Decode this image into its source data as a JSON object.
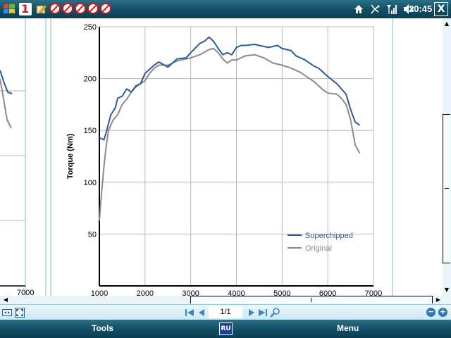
{
  "statusbar": {
    "time": "20:45",
    "close_label": "X"
  },
  "toolbar": {
    "page_indicator": "1/1"
  },
  "softkeys": {
    "left": "Tools",
    "center": "RU",
    "right": "Menu"
  },
  "chart_data": {
    "type": "line",
    "xlabel": "",
    "ylabel": "Torque (Nm)",
    "xlim": [
      1000,
      7000
    ],
    "ylim": [
      0,
      250
    ],
    "x_ticks": [
      1000,
      2000,
      3000,
      4000,
      5000,
      6000,
      7000
    ],
    "y_ticks": [
      50,
      100,
      150,
      200,
      250
    ],
    "grid": true,
    "legend_position": "bottom-right",
    "series": [
      {
        "name": "Superchipped",
        "color": "#2a5b9a",
        "x": [
          1000,
          1100,
          1150,
          1250,
          1350,
          1400,
          1500,
          1600,
          1700,
          1800,
          1900,
          2000,
          2200,
          2300,
          2500,
          2700,
          2900,
          3000,
          3200,
          3300,
          3400,
          3500,
          3600,
          3700,
          3800,
          3900,
          4000,
          4100,
          4200,
          4400,
          4600,
          4700,
          4900,
          5000,
          5200,
          5300,
          5500,
          5700,
          5800,
          6000,
          6200,
          6300,
          6400,
          6500,
          6600,
          6700
        ],
        "values": [
          143,
          141,
          148,
          165,
          172,
          181,
          183,
          190,
          187,
          193,
          195,
          205,
          213,
          216,
          211,
          219,
          220,
          225,
          234,
          236,
          240,
          236,
          229,
          223,
          225,
          223,
          230,
          232,
          232,
          233,
          231,
          230,
          232,
          229,
          227,
          222,
          218,
          212,
          210,
          202,
          195,
          190,
          185,
          170,
          158,
          155
        ]
      },
      {
        "name": "Original",
        "color": "#8a8a8a",
        "x": [
          1000,
          1050,
          1100,
          1150,
          1200,
          1300,
          1400,
          1500,
          1600,
          1700,
          1800,
          1900,
          2000,
          2100,
          2200,
          2300,
          2500,
          2700,
          2900,
          3000,
          3200,
          3400,
          3500,
          3600,
          3700,
          3800,
          3900,
          4000,
          4200,
          4400,
          4600,
          4800,
          5000,
          5200,
          5400,
          5600,
          5700,
          5900,
          6000,
          6200,
          6300,
          6400,
          6450,
          6500,
          6550,
          6600,
          6700
        ],
        "values": [
          63,
          90,
          115,
          135,
          150,
          160,
          165,
          175,
          180,
          187,
          192,
          195,
          198,
          205,
          210,
          213,
          213,
          217,
          219,
          220,
          223,
          228,
          229,
          225,
          219,
          215,
          218,
          218,
          222,
          223,
          220,
          215,
          213,
          210,
          206,
          200,
          197,
          189,
          186,
          185,
          181,
          175,
          168,
          160,
          148,
          136,
          128
        ]
      }
    ]
  },
  "left_page_fragment": {
    "x_tick": "7000"
  }
}
